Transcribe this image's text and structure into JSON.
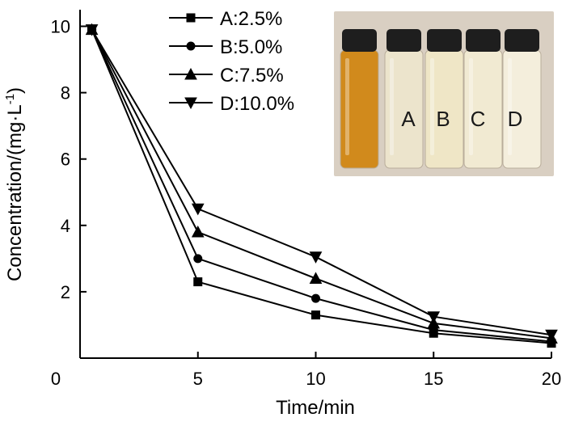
{
  "chart_data": {
    "type": "line",
    "xlabel": "Time/min",
    "ylabel_main": "Concentration/(mg·L",
    "ylabel_sup": "-1",
    "ylabel_close": ")",
    "xlim": [
      0,
      20
    ],
    "ylim": [
      0,
      10.5
    ],
    "x_ticks": [
      0,
      5,
      10,
      15,
      20
    ],
    "y_ticks": [
      0,
      2,
      4,
      6,
      8,
      10
    ],
    "x_tick_labels": [
      "0",
      "5",
      "10",
      "15",
      "20"
    ],
    "y_tick_labels": [
      "",
      "2",
      "4",
      "6",
      "8",
      "10"
    ],
    "x": [
      0.5,
      5,
      10,
      15,
      20
    ],
    "series": [
      {
        "name": "A:2.5%",
        "marker": "square",
        "values": [
          9.9,
          2.3,
          1.3,
          0.75,
          0.45
        ]
      },
      {
        "name": "B:5.0%",
        "marker": "circle",
        "values": [
          9.9,
          3.0,
          1.8,
          0.85,
          0.5
        ]
      },
      {
        "name": "C:7.5%",
        "marker": "triangle-up",
        "values": [
          9.9,
          3.8,
          2.4,
          1.05,
          0.6
        ]
      },
      {
        "name": "D:10.0%",
        "marker": "triangle-down",
        "values": [
          9.9,
          4.5,
          3.05,
          1.25,
          0.7
        ]
      }
    ],
    "legend_position": "top-left",
    "grid": false
  },
  "inset_photo": {
    "vial_labels": [
      "A",
      "B",
      "C",
      "D"
    ],
    "vial_colors": [
      "#d18a1c",
      "#ece4cc",
      "#efe6c6",
      "#f1ead2",
      "#f4eedc"
    ],
    "background_color": "#d9cfc2",
    "cap_color": "#1e1e1e"
  }
}
